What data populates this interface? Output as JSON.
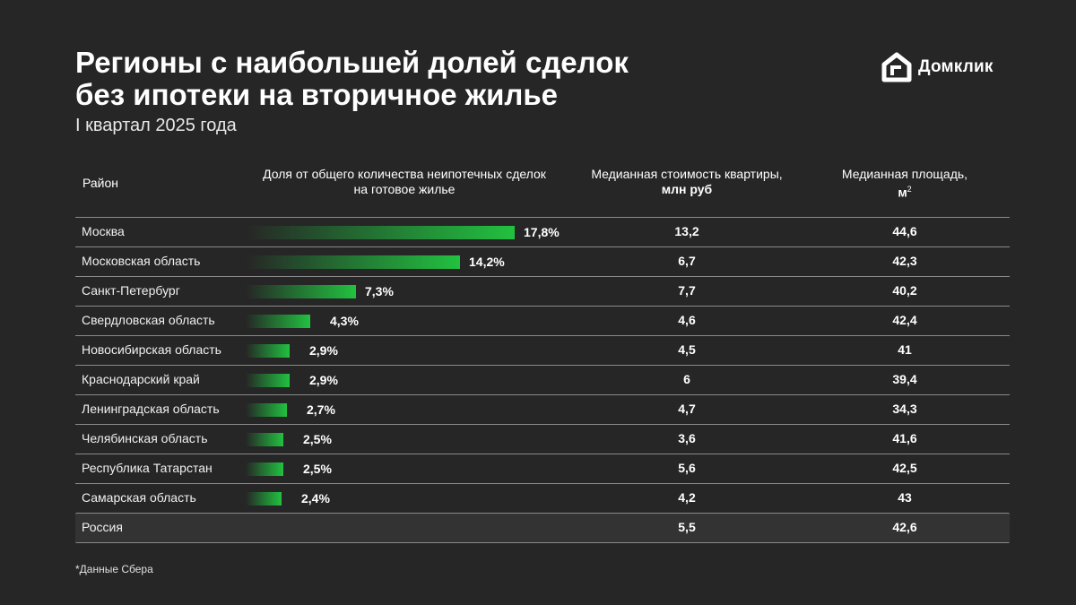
{
  "title_line1": "Регионы с наибольшей долей сделок",
  "title_line2": "без ипотеки на вторичное жилье",
  "subtitle": "I квартал 2025 года",
  "logo_text": "Домклик",
  "headers": {
    "region": "Район",
    "share_line1": "Доля от общего количества неипотечных сделок",
    "share_line2": "на готовое жилье",
    "price_line1": "Медианная стоимость квартиры,",
    "price_line2": "млн руб",
    "area_line1": "Медианная площадь,",
    "area_unit": "м",
    "area_sup": "2"
  },
  "footnote": "*Данные Сбера",
  "colors": {
    "background": "#262626",
    "bar": "#22c140"
  },
  "chart_data": {
    "type": "bar",
    "orientation": "horizontal",
    "title": "Регионы с наибольшей долей сделок без ипотеки на вторичное жилье",
    "subtitle": "I квартал 2025 года",
    "categories": [
      "Москва",
      "Московская область",
      "Санкт-Петербург",
      "Свердловская область",
      "Новосибирская область",
      "Краснодарский край",
      "Ленинградская область",
      "Челябинская область",
      "Республика Татарстан",
      "Самарская область"
    ],
    "values": [
      17.8,
      14.2,
      7.3,
      4.3,
      2.9,
      2.9,
      2.7,
      2.5,
      2.5,
      2.4
    ],
    "value_labels": [
      "17,8%",
      "14,2%",
      "7,3%",
      "4,3%",
      "2,9%",
      "2,9%",
      "2,7%",
      "2,5%",
      "2,5%",
      "2,4%"
    ],
    "grid": false
  },
  "rows": [
    {
      "region": "Москва",
      "share": "17,8%",
      "price": "13,2",
      "area": "44,6"
    },
    {
      "region": "Московская область",
      "share": "14,2%",
      "price": "6,7",
      "area": "42,3"
    },
    {
      "region": "Санкт-Петербург",
      "share": "7,3%",
      "price": "7,7",
      "area": "40,2"
    },
    {
      "region": "Свердловская область",
      "share": "4,3%",
      "price": "4,6",
      "area": "42,4"
    },
    {
      "region": "Новосибирская область",
      "share": "2,9%",
      "price": "4,5",
      "area": "41"
    },
    {
      "region": "Краснодарский край",
      "share": "2,9%",
      "price": "6",
      "area": "39,4"
    },
    {
      "region": "Ленинградская область",
      "share": "2,7%",
      "price": "4,7",
      "area": "34,3"
    },
    {
      "region": "Челябинская область",
      "share": "2,5%",
      "price": "3,6",
      "area": "41,6"
    },
    {
      "region": "Республика Татарстан",
      "share": "2,5%",
      "price": "5,6",
      "area": "42,5"
    },
    {
      "region": "Самарская область",
      "share": "2,4%",
      "price": "4,2",
      "area": "43"
    }
  ],
  "total": {
    "region": "Россия",
    "price": "5,5",
    "area": "42,6"
  }
}
